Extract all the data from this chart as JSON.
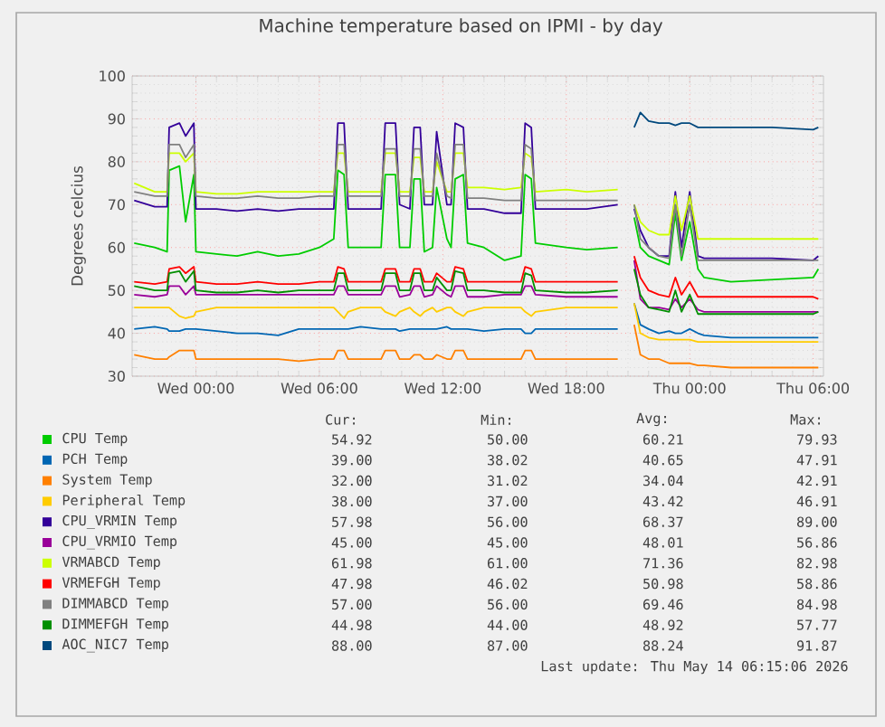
{
  "chart_data": {
    "type": "line",
    "title": "Machine temperature based on IPMI - by day",
    "ylabel": "Degrees celcius",
    "x": [
      "2026-05-12T21:00",
      "2026-05-12T22:00",
      "2026-05-12T22:36",
      "2026-05-12T22:42",
      "2026-05-12T23:12",
      "2026-05-12T23:30",
      "2026-05-12T23:54",
      "2026-05-13T00:00",
      "2026-05-13T01:00",
      "2026-05-13T02:00",
      "2026-05-13T03:00",
      "2026-05-13T04:00",
      "2026-05-13T05:00",
      "2026-05-13T06:00",
      "2026-05-13T06:42",
      "2026-05-13T06:54",
      "2026-05-13T07:12",
      "2026-05-13T07:24",
      "2026-05-13T08:00",
      "2026-05-13T09:00",
      "2026-05-13T09:12",
      "2026-05-13T09:42",
      "2026-05-13T09:54",
      "2026-05-13T10:24",
      "2026-05-13T10:36",
      "2026-05-13T10:54",
      "2026-05-13T11:06",
      "2026-05-13T11:30",
      "2026-05-13T11:42",
      "2026-05-13T12:12",
      "2026-05-13T12:24",
      "2026-05-13T12:36",
      "2026-05-13T13:00",
      "2026-05-13T13:12",
      "2026-05-13T14:00",
      "2026-05-13T15:00",
      "2026-05-13T15:48",
      "2026-05-13T16:00",
      "2026-05-13T16:18",
      "2026-05-13T16:30",
      "2026-05-13T18:00",
      "2026-05-13T19:00",
      "2026-05-13T20:30",
      "2026-05-13T20:36",
      "2026-05-13T21:18",
      "2026-05-13T21:36",
      "2026-05-13T22:00",
      "2026-05-13T22:30",
      "2026-05-13T23:00",
      "2026-05-13T23:18",
      "2026-05-13T23:36",
      "2026-05-14T00:00",
      "2026-05-14T00:24",
      "2026-05-14T00:42",
      "2026-05-14T02:00",
      "2026-05-14T04:00",
      "2026-05-14T06:00",
      "2026-05-14T06:15"
    ],
    "xlim": [
      "2026-05-12T20:54",
      "2026-05-14T06:30"
    ],
    "xticks": [
      {
        "value": "2026-05-13T00:00",
        "label": "Wed 00:00"
      },
      {
        "value": "2026-05-13T06:00",
        "label": "Wed 06:00"
      },
      {
        "value": "2026-05-13T12:00",
        "label": "Wed 12:00"
      },
      {
        "value": "2026-05-13T18:00",
        "label": "Wed 18:00"
      },
      {
        "value": "2026-05-14T00:00",
        "label": "Thu 00:00"
      },
      {
        "value": "2026-05-14T06:00",
        "label": "Thu 06:00"
      }
    ],
    "ylim": [
      30,
      100
    ],
    "yticks": [
      30,
      40,
      50,
      60,
      70,
      80,
      90,
      100
    ],
    "grid": true,
    "legend": "bottom",
    "series": [
      {
        "name": "CPU Temp",
        "color": "#00cc00",
        "values": [
          61,
          60,
          59,
          78,
          79,
          66,
          77,
          59,
          58.5,
          58,
          59,
          58,
          58.5,
          60,
          62,
          78,
          77,
          60,
          60,
          60,
          77,
          77,
          60,
          60,
          76,
          76,
          59,
          60,
          74,
          62,
          60,
          76,
          77,
          61,
          60,
          57,
          58,
          77,
          76,
          61,
          60,
          59.5,
          60,
          null,
          67,
          60,
          58,
          57,
          56,
          68,
          57,
          66,
          55,
          53,
          52,
          52.5,
          53,
          55
        ]
      },
      {
        "name": "PCH Temp",
        "color": "#0066b3",
        "values": [
          41,
          41.5,
          41,
          40.5,
          40.5,
          41,
          41,
          41,
          40.5,
          40,
          40,
          39.5,
          41,
          41,
          41,
          41,
          41,
          41,
          41.5,
          41,
          41,
          41,
          40.5,
          41,
          41,
          41,
          41,
          41,
          41,
          41.5,
          41,
          41,
          41,
          41,
          40.5,
          41,
          41,
          40,
          40,
          41,
          41,
          41,
          41,
          null,
          47,
          42,
          41,
          40,
          40.5,
          40,
          40,
          41,
          40,
          39.5,
          39,
          39,
          39,
          39
        ]
      },
      {
        "name": "System Temp",
        "color": "#ff8000",
        "values": [
          35,
          34,
          34,
          34.5,
          36,
          36,
          36,
          34,
          34,
          34,
          34,
          34,
          33.5,
          34,
          34,
          36,
          36,
          34,
          34,
          34,
          36,
          36,
          34,
          34,
          35,
          35,
          34,
          34,
          35,
          34,
          34,
          36,
          36,
          34,
          34,
          34,
          34,
          36,
          36,
          34,
          34,
          34,
          34,
          null,
          42,
          35,
          34,
          34,
          33,
          33,
          33,
          33,
          32.5,
          32.5,
          32,
          32,
          32,
          32
        ]
      },
      {
        "name": "Peripheral Temp",
        "color": "#ffcc00",
        "values": [
          46,
          46,
          46,
          46,
          44,
          43.5,
          44,
          45,
          46,
          46,
          46,
          46,
          46,
          46,
          46,
          45,
          43.5,
          45,
          46,
          46,
          45,
          44,
          45,
          46,
          45,
          44,
          45,
          46,
          45,
          46,
          46,
          45,
          44,
          45,
          46,
          46,
          46,
          45,
          44,
          45,
          46,
          46,
          46,
          null,
          47,
          40,
          39,
          38.5,
          38.5,
          38.5,
          38.5,
          38.5,
          38,
          38,
          38,
          38,
          38,
          38
        ]
      },
      {
        "name": "CPU_VRMIN Temp",
        "color": "#330099",
        "values": [
          71,
          69.5,
          69.5,
          88,
          89,
          86,
          89,
          69,
          69,
          68.5,
          69,
          68.5,
          69,
          69,
          69,
          89,
          89,
          69,
          69,
          69,
          89,
          89,
          70,
          69,
          88,
          88,
          70,
          70,
          87,
          70,
          70,
          89,
          88,
          69,
          69,
          68,
          68,
          89,
          88,
          69,
          69,
          69,
          70,
          null,
          69,
          64,
          60,
          58,
          58,
          73,
          60,
          73,
          58,
          57.5,
          57.5,
          57.5,
          57,
          58
        ]
      },
      {
        "name": "CPU_VRMIO Temp",
        "color": "#990099",
        "values": [
          49,
          48.5,
          49,
          51,
          51,
          49,
          51,
          49,
          49,
          49,
          49,
          49,
          49,
          49,
          49,
          51,
          51,
          49,
          49,
          49,
          51,
          51,
          48.5,
          49,
          51,
          51,
          48.5,
          49,
          51,
          49,
          48.5,
          51,
          51,
          48.5,
          48.5,
          49,
          49,
          51,
          51,
          49,
          48.5,
          48.5,
          48.5,
          null,
          57,
          48,
          46,
          46,
          45.5,
          48,
          46,
          48,
          45.5,
          45,
          45,
          45,
          45,
          45
        ]
      },
      {
        "name": "VRMABCD Temp",
        "color": "#ccff00",
        "values": [
          75,
          73,
          73,
          82,
          82,
          80,
          82,
          73,
          72.5,
          72.5,
          73,
          73,
          73,
          73,
          73,
          82,
          82,
          73,
          73,
          73,
          82,
          82,
          73,
          73,
          81,
          81,
          73,
          73,
          80,
          73,
          73,
          82,
          82,
          74,
          74,
          73.5,
          74,
          82,
          81,
          73,
          73.5,
          73,
          73.5,
          null,
          70,
          66,
          64,
          63,
          63,
          72,
          64,
          72,
          62,
          62,
          62,
          62,
          62,
          62
        ]
      },
      {
        "name": "VRMEFGH Temp",
        "color": "#ff0000",
        "values": [
          52,
          51.5,
          52,
          55,
          55.5,
          54,
          55.5,
          52,
          51.5,
          51.5,
          52,
          51.5,
          51.5,
          52,
          52,
          55.5,
          55,
          52,
          52,
          52,
          55,
          55,
          52,
          52,
          55,
          55,
          52,
          52,
          54,
          52,
          52,
          55.5,
          55,
          52,
          52,
          52,
          52,
          55.5,
          55,
          52,
          52,
          52,
          52,
          null,
          58,
          53,
          50,
          49,
          48.5,
          53,
          49,
          52,
          48.5,
          48.5,
          48.5,
          48.5,
          48.5,
          48
        ]
      },
      {
        "name": "DIMMABCD Temp",
        "color": "#808080",
        "values": [
          73,
          72,
          72,
          84,
          84,
          81,
          84,
          72,
          71.5,
          71.5,
          72,
          71.5,
          71.5,
          72,
          72,
          84,
          84,
          72,
          72,
          72,
          83,
          83,
          72,
          72,
          83,
          83,
          72,
          72,
          82,
          72,
          71.5,
          84,
          84,
          71.5,
          71.5,
          71,
          71,
          84,
          83,
          71,
          71,
          71,
          71,
          null,
          70,
          62,
          60,
          58,
          57.5,
          70,
          58,
          70,
          57,
          57,
          57,
          57,
          57,
          57
        ]
      },
      {
        "name": "DIMMEFGH Temp",
        "color": "#008f00",
        "values": [
          51,
          50,
          50,
          54,
          54.5,
          52,
          54.5,
          50,
          49.5,
          49.5,
          50,
          49.5,
          50,
          50,
          50,
          54,
          54,
          50,
          50,
          50,
          54,
          54,
          50,
          50,
          54,
          54,
          50,
          50,
          53,
          50,
          50,
          54.5,
          54,
          50,
          50,
          49.5,
          49.5,
          54,
          53.5,
          50,
          49.5,
          49.5,
          50,
          null,
          55,
          49,
          46,
          45.5,
          45,
          50,
          45,
          49,
          44.5,
          44.5,
          44.5,
          44.5,
          44.5,
          45
        ]
      },
      {
        "name": "AOC_NIC7 Temp",
        "color": "#00487d",
        "values": [
          null,
          null,
          null,
          null,
          null,
          null,
          null,
          null,
          null,
          null,
          null,
          null,
          null,
          null,
          null,
          null,
          null,
          null,
          null,
          null,
          null,
          null,
          null,
          null,
          null,
          null,
          null,
          null,
          null,
          null,
          null,
          null,
          null,
          null,
          null,
          null,
          null,
          null,
          null,
          null,
          null,
          null,
          null,
          null,
          88,
          91.5,
          89.5,
          89,
          89,
          88.5,
          89,
          89,
          88,
          88,
          88,
          88,
          87.5,
          88
        ]
      }
    ],
    "annotations": [
      "Cur:",
      "Min:",
      "Avg:",
      "Max:",
      "54.92",
      "50.00",
      "60.21",
      "79.93",
      "39.00",
      "38.02",
      "40.65",
      "47.91",
      "32.00",
      "31.02",
      "34.04",
      "42.91",
      "38.00",
      "37.00",
      "43.42",
      "46.91",
      "57.98",
      "56.00",
      "68.37",
      "89.00",
      "45.00",
      "45.00",
      "48.01",
      "56.86",
      "61.98",
      "61.00",
      "71.36",
      "82.98",
      "47.98",
      "46.02",
      "50.98",
      "58.86",
      "57.00",
      "56.00",
      "69.46",
      "84.98",
      "44.98",
      "44.00",
      "48.92",
      "57.77",
      "88.00",
      "87.00",
      "88.24",
      "91.87",
      "Last update: Thu May 14 06:15:06 2026"
    ]
  }
}
